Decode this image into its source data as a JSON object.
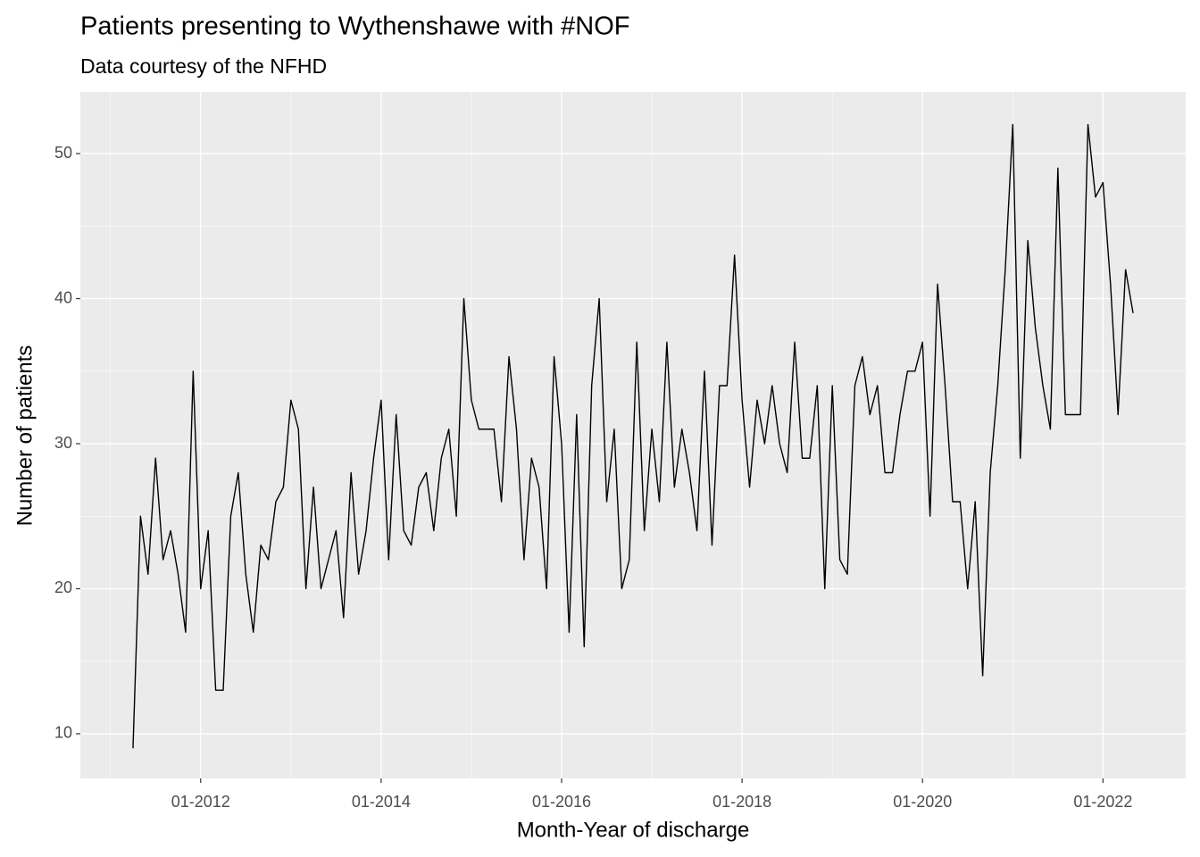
{
  "chart_data": {
    "type": "line",
    "title": "Patients presenting to Wythenshawe with #NOF",
    "subtitle": "Data courtesy of the NFHD",
    "x_label": "Month-Year of discharge",
    "y_label": "Number of patients",
    "color": "#000000",
    "grid": true,
    "x": [
      "2011-04",
      "2011-05",
      "2011-06",
      "2011-07",
      "2011-08",
      "2011-09",
      "2011-10",
      "2011-11",
      "2011-12",
      "2012-01",
      "2012-02",
      "2012-03",
      "2012-04",
      "2012-05",
      "2012-06",
      "2012-07",
      "2012-08",
      "2012-09",
      "2012-10",
      "2012-11",
      "2012-12",
      "2013-01",
      "2013-02",
      "2013-03",
      "2013-04",
      "2013-05",
      "2013-06",
      "2013-07",
      "2013-08",
      "2013-09",
      "2013-10",
      "2013-11",
      "2013-12",
      "2014-01",
      "2014-02",
      "2014-03",
      "2014-04",
      "2014-05",
      "2014-06",
      "2014-07",
      "2014-08",
      "2014-09",
      "2014-10",
      "2014-11",
      "2014-12",
      "2015-01",
      "2015-02",
      "2015-03",
      "2015-04",
      "2015-05",
      "2015-06",
      "2015-07",
      "2015-08",
      "2015-09",
      "2015-10",
      "2015-11",
      "2015-12",
      "2016-01",
      "2016-02",
      "2016-03",
      "2016-04",
      "2016-05",
      "2016-06",
      "2016-07",
      "2016-08",
      "2016-09",
      "2016-10",
      "2016-11",
      "2016-12",
      "2017-01",
      "2017-02",
      "2017-03",
      "2017-04",
      "2017-05",
      "2017-06",
      "2017-07",
      "2017-08",
      "2017-09",
      "2017-10",
      "2017-11",
      "2017-12",
      "2018-01",
      "2018-02",
      "2018-03",
      "2018-04",
      "2018-05",
      "2018-06",
      "2018-07",
      "2018-08",
      "2018-09",
      "2018-10",
      "2018-11",
      "2018-12",
      "2019-01",
      "2019-02",
      "2019-03",
      "2019-04",
      "2019-05",
      "2019-06",
      "2019-07",
      "2019-08",
      "2019-09",
      "2019-10",
      "2019-11",
      "2019-12",
      "2020-01",
      "2020-02",
      "2020-03",
      "2020-04",
      "2020-05",
      "2020-06",
      "2020-07",
      "2020-08",
      "2020-09",
      "2020-10",
      "2020-11",
      "2020-12",
      "2021-01",
      "2021-02",
      "2021-03",
      "2021-04",
      "2021-05",
      "2021-06",
      "2021-07",
      "2021-08",
      "2021-09",
      "2021-10",
      "2021-11",
      "2021-12",
      "2022-01",
      "2022-02",
      "2022-03",
      "2022-04",
      "2022-05"
    ],
    "values": [
      9,
      25,
      21,
      29,
      22,
      24,
      21,
      17,
      35,
      20,
      24,
      13,
      13,
      25,
      28,
      21,
      17,
      23,
      22,
      26,
      27,
      33,
      31,
      20,
      27,
      20,
      22,
      24,
      18,
      28,
      21,
      24,
      29,
      33,
      22,
      32,
      24,
      23,
      27,
      28,
      24,
      29,
      31,
      25,
      40,
      33,
      31,
      31,
      31,
      26,
      36,
      31,
      22,
      29,
      27,
      20,
      36,
      30,
      17,
      32,
      16,
      34,
      40,
      26,
      31,
      20,
      22,
      37,
      24,
      31,
      26,
      37,
      27,
      31,
      28,
      24,
      35,
      23,
      34,
      34,
      43,
      33,
      27,
      33,
      30,
      34,
      30,
      28,
      37,
      29,
      29,
      34,
      20,
      34,
      22,
      21,
      34,
      36,
      32,
      34,
      28,
      28,
      32,
      35,
      35,
      37,
      25,
      41,
      34,
      26,
      26,
      20,
      26,
      14,
      28,
      34,
      42,
      52,
      29,
      44,
      38,
      34,
      31,
      49,
      32,
      32,
      32,
      52,
      47,
      48,
      41,
      32,
      42,
      39
    ],
    "xlim": [
      "2010-09",
      "2022-12"
    ],
    "xticks": [
      {
        "value": "2012-01",
        "label": "01-2012"
      },
      {
        "value": "2014-01",
        "label": "01-2014"
      },
      {
        "value": "2016-01",
        "label": "01-2016"
      },
      {
        "value": "2018-01",
        "label": "01-2018"
      },
      {
        "value": "2020-01",
        "label": "01-2020"
      },
      {
        "value": "2022-01",
        "label": "01-2022"
      }
    ],
    "ylim": [
      6.92,
      54.25
    ],
    "yticks": [
      10,
      20,
      30,
      40,
      50
    ]
  }
}
